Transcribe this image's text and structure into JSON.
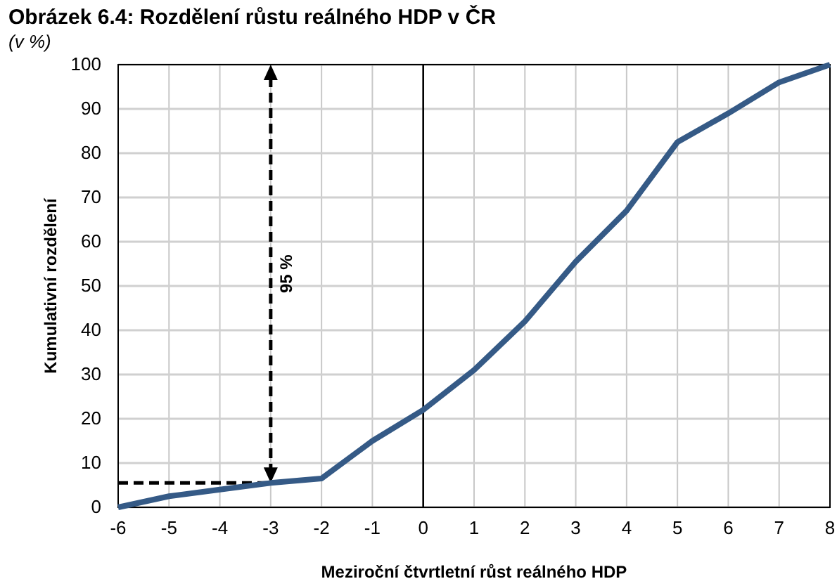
{
  "chart_data": {
    "type": "line",
    "title": "Obrázek 6.4: Rozdělení růstu reálného HDP v ČR",
    "subtitle": "(v %)",
    "xlabel": "Meziroční čtvrtletní růst reálného HDP",
    "ylabel": "Kumulativní rozdělení",
    "x": [
      -6,
      -5,
      -4,
      -3,
      -2,
      -1,
      0,
      1,
      2,
      3,
      4,
      5,
      6,
      7,
      8
    ],
    "series": [
      {
        "color": "#355a86",
        "values": [
          0,
          2.5,
          4,
          5.5,
          6.5,
          15,
          22,
          31,
          42,
          55.5,
          67,
          82.5,
          89,
          96,
          100
        ]
      }
    ],
    "xlim": [
      -6,
      8
    ],
    "xticks": [
      -6,
      -5,
      -4,
      -3,
      -2,
      -1,
      0,
      1,
      2,
      3,
      4,
      5,
      6,
      7,
      8
    ],
    "ylim": [
      0,
      100
    ],
    "yticks": [
      0,
      10,
      20,
      30,
      40,
      50,
      60,
      70,
      80,
      90,
      100
    ],
    "grid": true,
    "marker": "none",
    "line_style": "solid",
    "ref_lines": [
      {
        "axis": "x",
        "value": 0,
        "color": "#000000",
        "line_style": "solid"
      },
      {
        "axis": "x",
        "value": -3,
        "color": "#000000",
        "line_style": "dashed"
      },
      {
        "axis": "y",
        "value": 5.5,
        "color": "#000000",
        "line_style": "dashed"
      }
    ],
    "annotations": [
      "95 %"
    ]
  }
}
